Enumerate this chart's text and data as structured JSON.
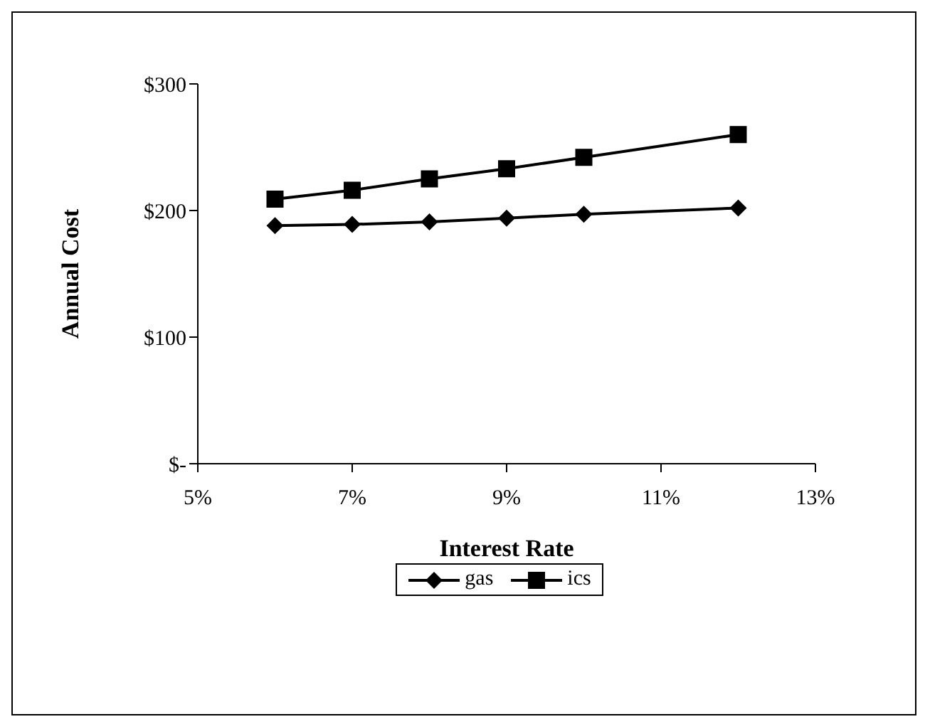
{
  "chart_data": {
    "type": "line",
    "xlabel": "Interest Rate",
    "ylabel": "Annual Cost",
    "x": [
      6,
      7,
      8,
      9,
      10,
      12
    ],
    "series": [
      {
        "name": "gas",
        "color": "#000000",
        "marker": "diamond",
        "values": [
          188,
          189,
          191,
          194,
          197,
          202
        ]
      },
      {
        "name": "ics",
        "color": "#000000",
        "marker": "square",
        "values": [
          209,
          216,
          225,
          233,
          242,
          260
        ]
      }
    ],
    "xlim": [
      5,
      13
    ],
    "xticks": [
      {
        "value": 5,
        "label": "5%"
      },
      {
        "value": 7,
        "label": "7%"
      },
      {
        "value": 9,
        "label": "9%"
      },
      {
        "value": 11,
        "label": "11%"
      },
      {
        "value": 13,
        "label": "13%"
      }
    ],
    "ylim": [
      0,
      300
    ],
    "yticks": [
      {
        "value": 0,
        "label": "$-"
      },
      {
        "value": 100,
        "label": "$100"
      },
      {
        "value": 200,
        "label": "$200"
      },
      {
        "value": 300,
        "label": "$300"
      }
    ],
    "grid": false,
    "legend": "bottom"
  }
}
